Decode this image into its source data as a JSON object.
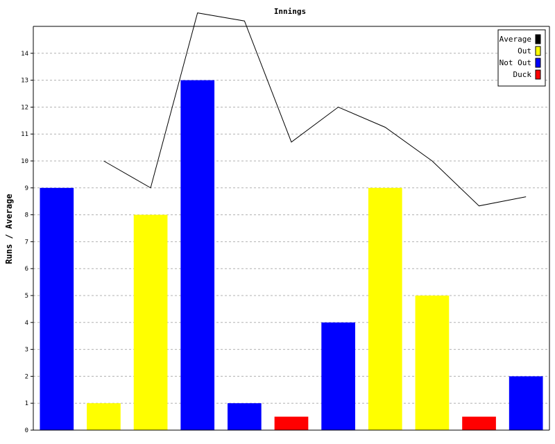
{
  "chart_data": {
    "type": "bar",
    "title": "Innings",
    "xlabel": "",
    "ylabel": "Runs / Average",
    "ylim": [
      0,
      15
    ],
    "yticks": [
      0,
      1,
      2,
      3,
      4,
      5,
      6,
      7,
      8,
      9,
      10,
      11,
      12,
      13,
      14
    ],
    "grid": true,
    "legend_position": "top-right",
    "bars": [
      {
        "value": 9,
        "status": "Not Out"
      },
      {
        "value": 1,
        "status": "Out"
      },
      {
        "value": 8,
        "status": "Out"
      },
      {
        "value": 13,
        "status": "Not Out"
      },
      {
        "value": 1,
        "status": "Not Out"
      },
      {
        "value": 0.5,
        "status": "Duck"
      },
      {
        "value": 4,
        "status": "Not Out"
      },
      {
        "value": 9,
        "status": "Out"
      },
      {
        "value": 5,
        "status": "Out"
      },
      {
        "value": 0.5,
        "status": "Duck"
      },
      {
        "value": 2,
        "status": "Not Out"
      }
    ],
    "series": [
      {
        "name": "Average",
        "type": "line",
        "color": "#000000",
        "values": [
          null,
          10,
          9,
          15.5,
          15.2,
          10.7,
          12,
          11.25,
          10,
          8.33,
          8.67
        ]
      }
    ],
    "legend": [
      {
        "label": "Average",
        "color": "#000000"
      },
      {
        "label": "Out",
        "color": "#ffff00"
      },
      {
        "label": "Not Out",
        "color": "#0000ff"
      },
      {
        "label": "Duck",
        "color": "#ff0000"
      }
    ],
    "status_colors": {
      "Out": "#ffff00",
      "Not Out": "#0000ff",
      "Duck": "#ff0000"
    }
  }
}
